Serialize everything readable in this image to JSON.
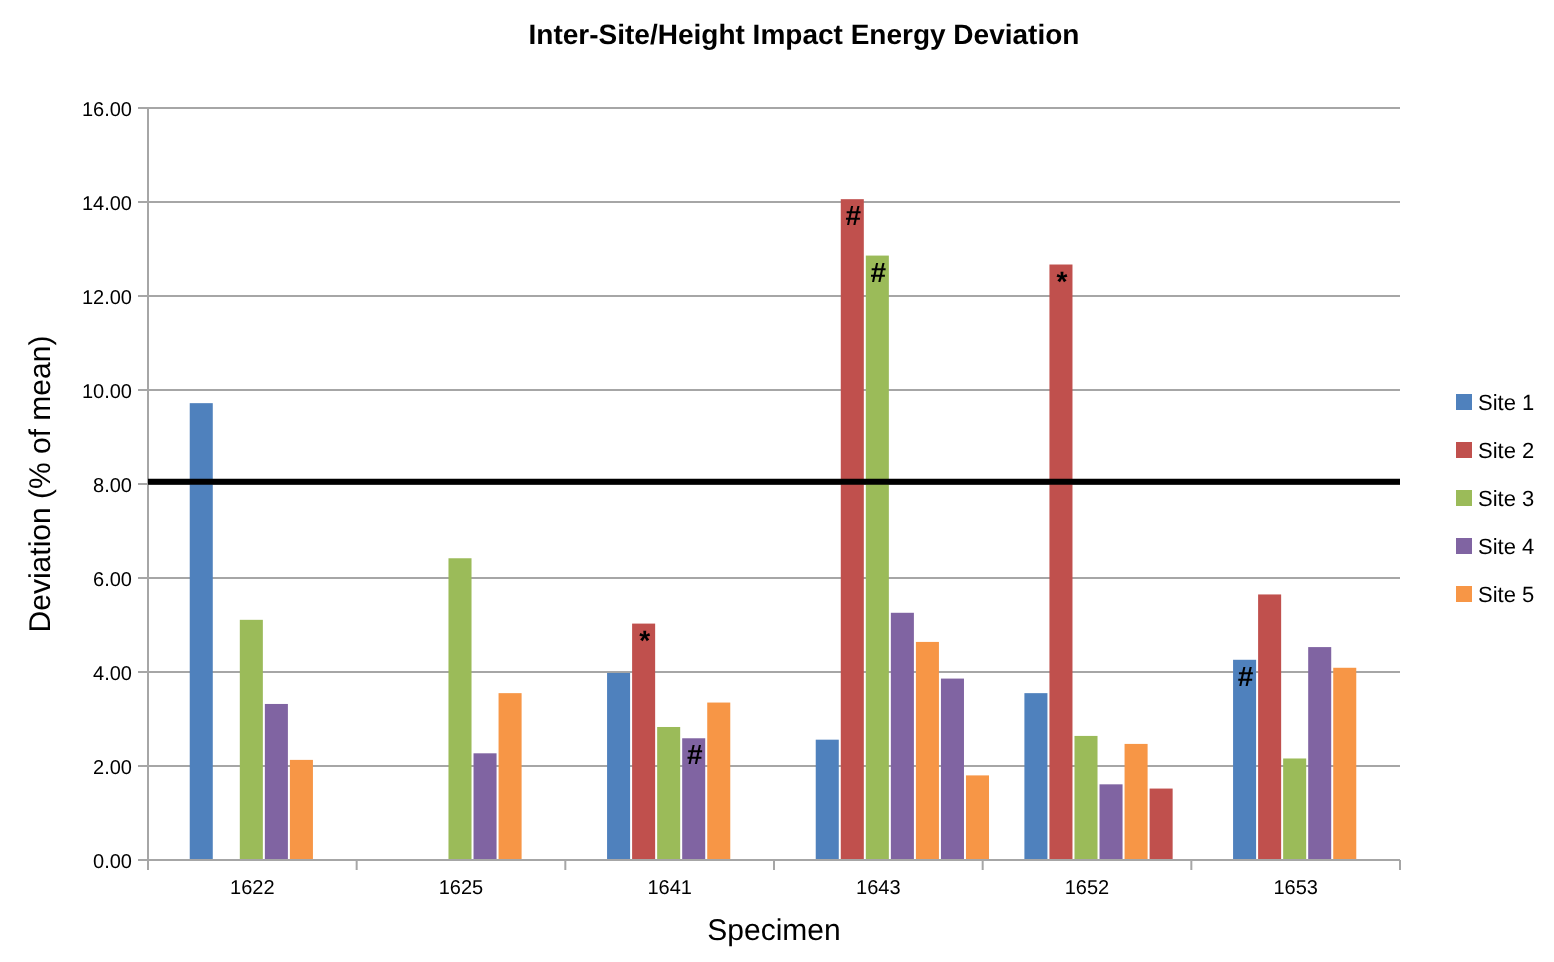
{
  "chart_data": {
    "type": "bar",
    "title": "Inter-Site/Height Impact Energy Deviation",
    "xlabel": "Specimen",
    "ylabel": "Deviation (% of mean)",
    "categories": [
      "1622",
      "1625",
      "1641",
      "1643",
      "1652",
      "1653"
    ],
    "series": [
      {
        "name": "Site 1",
        "color": "#4f81bd",
        "values": [
          9.72,
          null,
          3.98,
          2.56,
          3.55,
          4.26
        ]
      },
      {
        "name": "Site 2",
        "color": "#c0504d",
        "values": [
          null,
          null,
          5.03,
          14.06,
          12.67,
          5.65
        ]
      },
      {
        "name": "Site 3",
        "color": "#9bbb59",
        "values": [
          5.11,
          6.42,
          2.83,
          12.86,
          2.64,
          2.16
        ]
      },
      {
        "name": "Site 4",
        "color": "#8064a2",
        "values": [
          3.32,
          2.27,
          2.59,
          5.26,
          1.61,
          4.53
        ]
      },
      {
        "name": "Site 5",
        "color": "#f79646",
        "values": [
          2.13,
          3.55,
          3.35,
          4.64,
          2.47,
          4.09
        ]
      },
      {
        "colors": [
          null,
          null,
          null,
          "#8064a2",
          "#c0504d",
          null
        ],
        "values": [
          null,
          null,
          null,
          3.86,
          1.52,
          null
        ]
      },
      {
        "color": "#f79646",
        "values": [
          null,
          null,
          null,
          1.8,
          null,
          null
        ]
      }
    ],
    "ylim": [
      0,
      16
    ],
    "yticks": [
      {
        "value": 0,
        "label": "0.00"
      },
      {
        "value": 2,
        "label": "2.00"
      },
      {
        "value": 4,
        "label": "4.00"
      },
      {
        "value": 6,
        "label": "6.00"
      },
      {
        "value": 8,
        "label": "8.00"
      },
      {
        "value": 10,
        "label": "10.00"
      },
      {
        "value": 12,
        "label": "12.00"
      },
      {
        "value": 14,
        "label": "14.00"
      },
      {
        "value": 16,
        "label": "16.00"
      }
    ],
    "grid": "y",
    "legend": "right",
    "ref_lines": [
      {
        "axis": "y",
        "value": 8.05,
        "color": "#000000"
      }
    ],
    "annotations": [
      {
        "text": "*",
        "y": 5.03
      },
      {
        "text": "#",
        "y": 2.59
      },
      {
        "text": "#",
        "y": 14.06
      },
      {
        "text": "#",
        "y": 12.86
      },
      {
        "text": "*",
        "y": 12.67
      },
      {
        "text": "#",
        "y": 4.26
      }
    ]
  }
}
